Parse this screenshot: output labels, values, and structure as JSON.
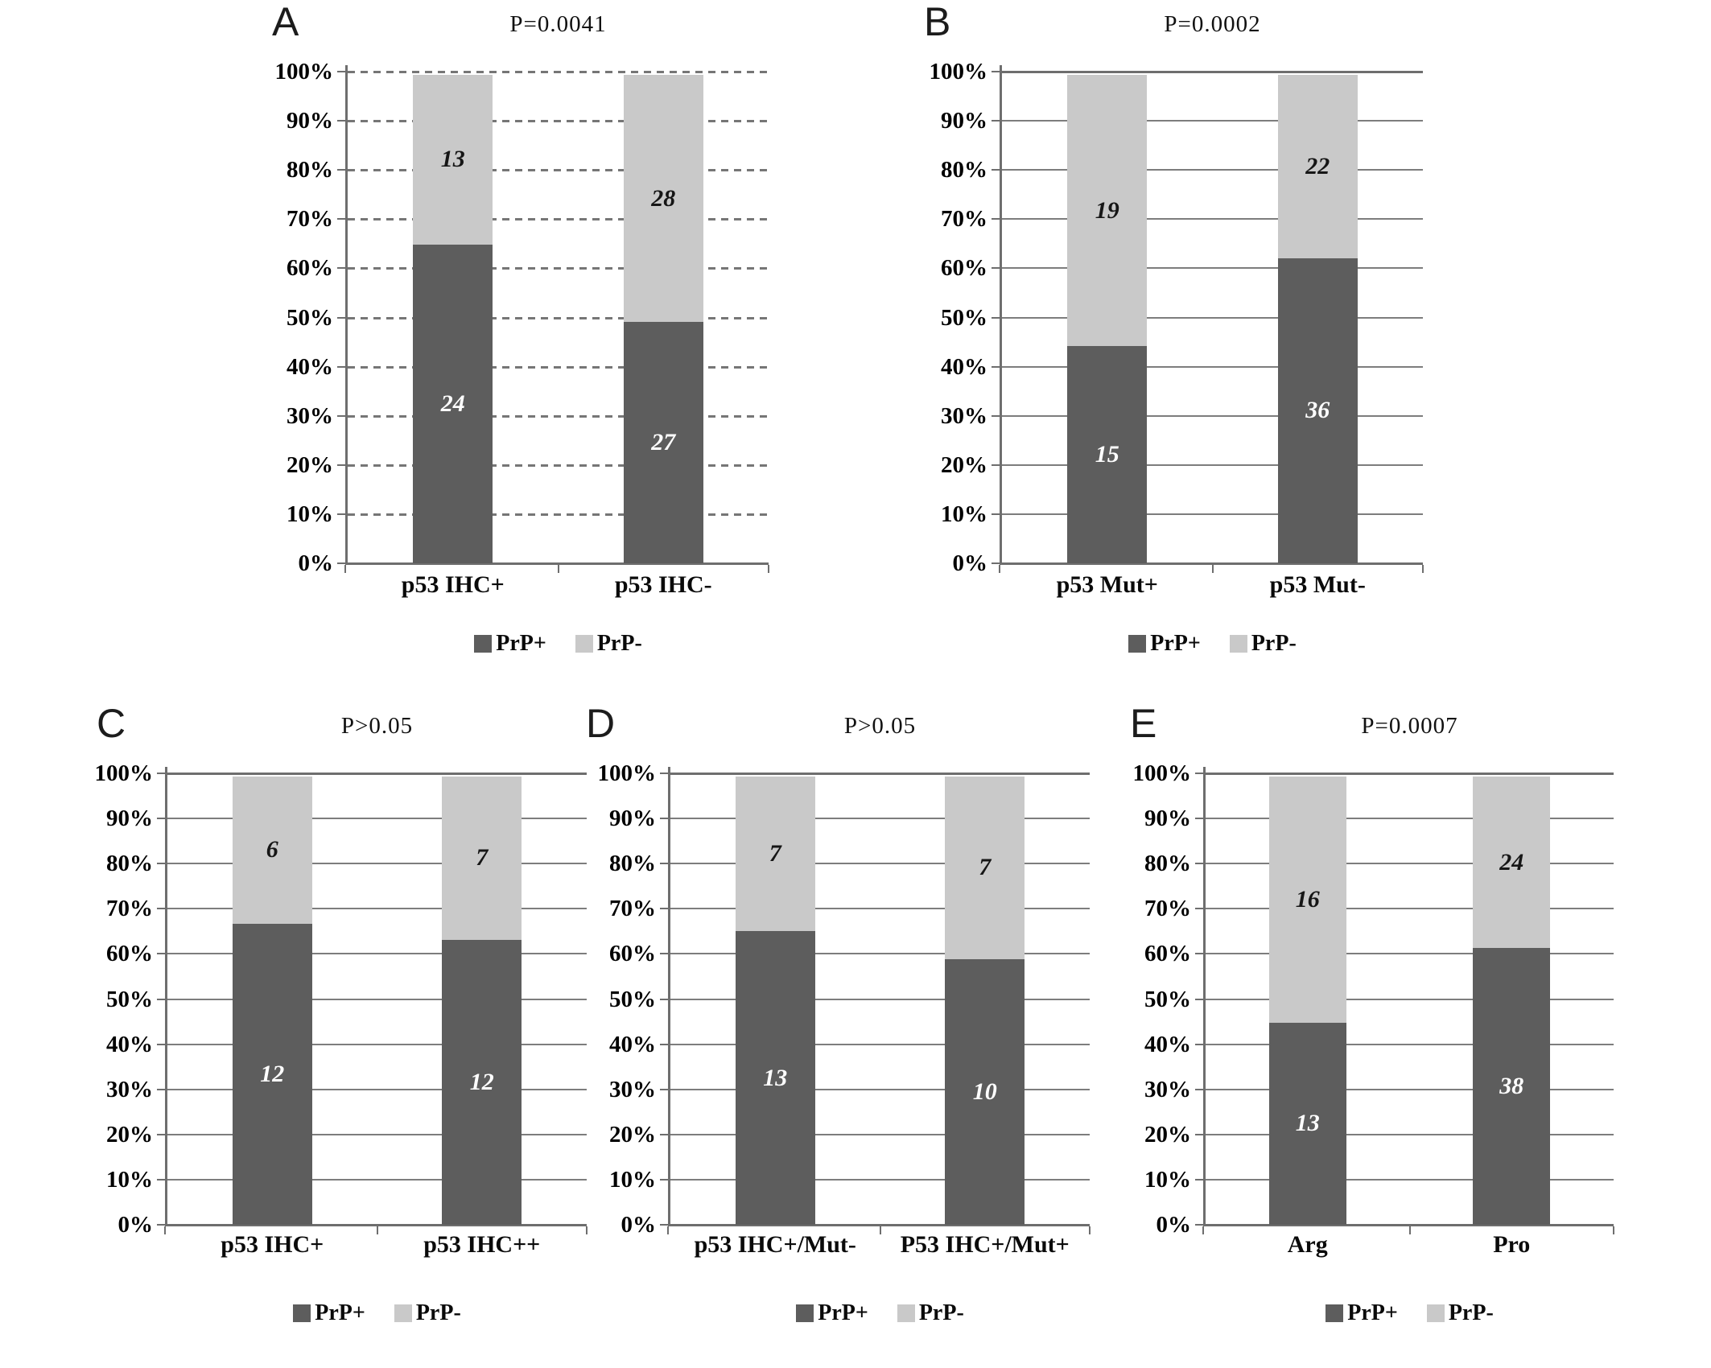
{
  "figure": {
    "background": "#ffffff",
    "description_visible_text_only": true
  },
  "chart_data": {
    "type": "bar",
    "subtype": "100-percent-stacked-vertical",
    "ylim": [
      0,
      100
    ],
    "grid": true,
    "legend_position": "bottom",
    "y_tick_labels": [
      "0%",
      "10%",
      "20%",
      "30%",
      "40%",
      "50%",
      "60%",
      "70%",
      "80%",
      "90%",
      "100%"
    ],
    "legend": {
      "entries": [
        {
          "label": "PrP+",
          "color": "#5d5d5d"
        },
        {
          "label": "PrP-",
          "color": "#c9c9c9"
        }
      ]
    },
    "axis_color": "#6e6e6e",
    "grid_color": "#7d7d7d",
    "panels": [
      {
        "label": "A",
        "title": "P=0.0041",
        "grid_style": "dashed",
        "categories": [
          "p53 IHC+",
          "p53 IHC-"
        ],
        "series": [
          {
            "name": "PrP+",
            "values": [
              24,
              27
            ]
          },
          {
            "name": "PrP-",
            "values": [
              13,
              28
            ]
          }
        ]
      },
      {
        "label": "B",
        "title": "P=0.0002",
        "grid_style": "solid",
        "categories": [
          "p53 Mut+",
          "p53 Mut-"
        ],
        "series": [
          {
            "name": "PrP+",
            "values": [
              15,
              36
            ]
          },
          {
            "name": "PrP-",
            "values": [
              19,
              22
            ]
          }
        ]
      },
      {
        "label": "C",
        "title": "P>0.05",
        "grid_style": "solid",
        "categories": [
          "p53 IHC+",
          "p53 IHC++"
        ],
        "series": [
          {
            "name": "PrP+",
            "values": [
              12,
              12
            ]
          },
          {
            "name": "PrP-",
            "values": [
              6,
              7
            ]
          }
        ]
      },
      {
        "label": "D",
        "title": "P>0.05",
        "grid_style": "solid",
        "categories": [
          "p53 IHC+/Mut-",
          "P53 IHC+/Mut+"
        ],
        "series": [
          {
            "name": "PrP+",
            "values": [
              13,
              10
            ]
          },
          {
            "name": "PrP-",
            "values": [
              7,
              7
            ]
          }
        ]
      },
      {
        "label": "E",
        "title": "P=0.0007",
        "grid_style": "solid",
        "categories": [
          "Arg",
          "Pro"
        ],
        "series": [
          {
            "name": "PrP+",
            "values": [
              13,
              38
            ]
          },
          {
            "name": "PrP-",
            "values": [
              16,
              24
            ]
          }
        ]
      }
    ]
  }
}
